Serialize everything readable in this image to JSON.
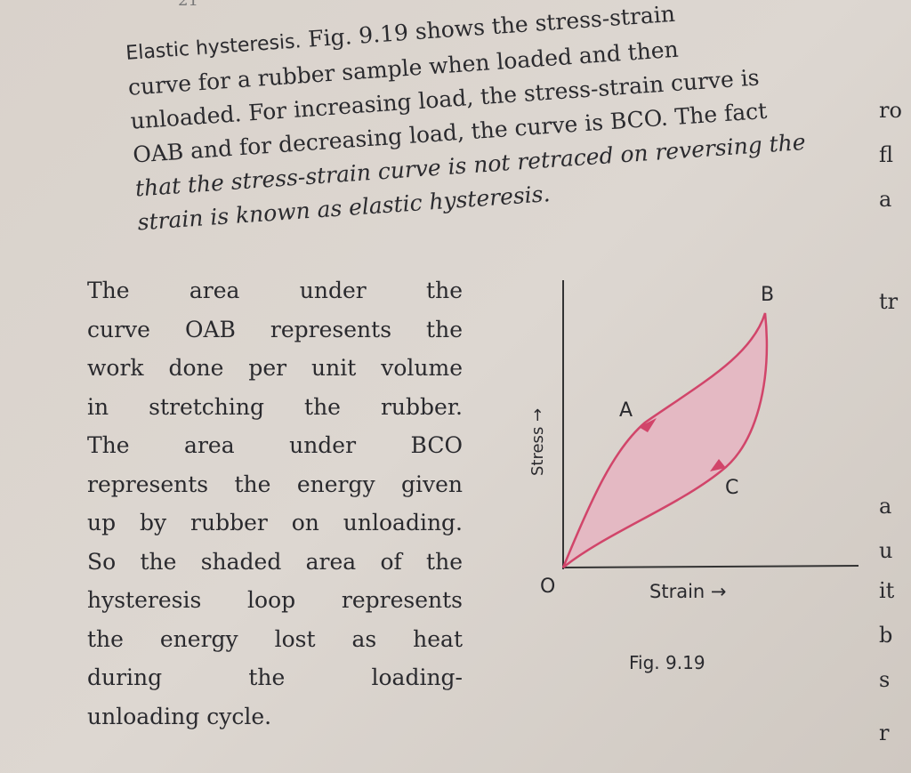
{
  "page_number": "21",
  "paragraph_1": {
    "heading": "Elastic hysteresis.",
    "lines": [
      "Fig. 9.19 shows the stress-strain",
      "curve for a rubber sample when loaded and then",
      "unloaded. For increasing load, the stress-strain curve is",
      "OAB and for decreasing load, the curve is BCO. The fact",
      "that the stress-strain curve is not retraced on reversing the",
      "strain is known as elastic hysteresis."
    ]
  },
  "paragraph_2": {
    "lines": [
      "The area under the",
      "curve OAB represents the",
      "work done per unit volume",
      "in stretching the rubber.",
      "The area under BCO",
      "represents the energy given",
      "up by rubber on unloading.",
      "So the shaded area of the",
      "hysteresis loop represents",
      "the energy lost as heat",
      "during the loading-",
      "unloading cycle."
    ]
  },
  "figure": {
    "point_labels": {
      "O": "O",
      "A": "A",
      "B": "B",
      "C": "C"
    },
    "y_axis_label": "Stress →",
    "x_axis_label": "Strain →",
    "caption": "Fig. 9.19"
  },
  "right_margin_fragments": [
    "ro",
    "fl",
    "a",
    "tr",
    "a",
    "u",
    "it",
    "b",
    "s",
    "r"
  ]
}
